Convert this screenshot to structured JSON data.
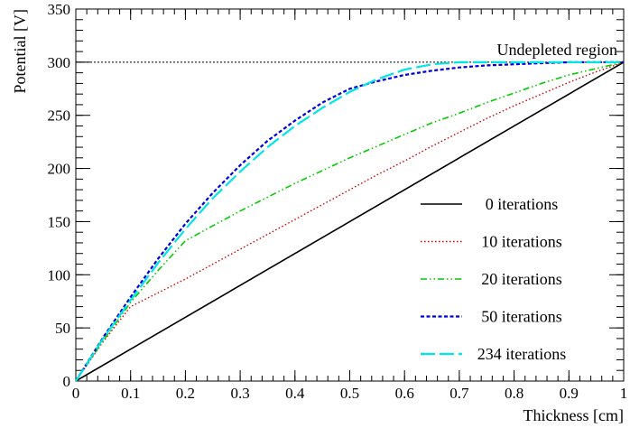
{
  "chart_data": {
    "type": "line",
    "title": "",
    "xlabel": "Thickness [cm]",
    "ylabel": "Potential [V]",
    "xlim": [
      0,
      1
    ],
    "ylim": [
      0,
      350
    ],
    "x_ticks": [
      "0",
      "0.1",
      "0.2",
      "0.3",
      "0.4",
      "0.5",
      "0.6",
      "0.7",
      "0.8",
      "0.9",
      "1"
    ],
    "y_ticks": [
      "0",
      "50",
      "100",
      "150",
      "200",
      "250",
      "300",
      "350"
    ],
    "grid": false,
    "legend_position": "center-right",
    "annotation": {
      "text": "Undepleted region",
      "reference_line_y": 300
    },
    "series": [
      {
        "name": "0 iterations",
        "color": "#000000",
        "x": [
          0,
          1
        ],
        "y": [
          0,
          300
        ]
      },
      {
        "name": "10 iterations",
        "color": "#cc0000",
        "x": [
          0,
          0.05,
          0.1,
          0.15,
          0.2,
          0.25,
          0.3,
          0.35,
          0.4,
          0.45,
          0.5,
          0.55,
          0.6,
          0.65,
          0.7,
          0.75,
          0.8,
          0.85,
          0.9,
          0.95,
          1
        ],
        "y": [
          0,
          37,
          70,
          83,
          96,
          110,
          124,
          138,
          152,
          166,
          180,
          194,
          207,
          221,
          234,
          247,
          259,
          270,
          281,
          291,
          300
        ]
      },
      {
        "name": "20 iterations",
        "color": "#00cc00",
        "x": [
          0,
          0.05,
          0.1,
          0.15,
          0.2,
          0.25,
          0.3,
          0.35,
          0.4,
          0.45,
          0.5,
          0.55,
          0.6,
          0.65,
          0.7,
          0.75,
          0.8,
          0.85,
          0.9,
          0.95,
          1
        ],
        "y": [
          0,
          38,
          74,
          104,
          132,
          146,
          160,
          173,
          186,
          198,
          210,
          221,
          232,
          243,
          252,
          262,
          271,
          280,
          288,
          294,
          300
        ]
      },
      {
        "name": "50 iterations",
        "color": "#0000dd",
        "x": [
          0,
          0.05,
          0.1,
          0.15,
          0.2,
          0.25,
          0.3,
          0.35,
          0.4,
          0.45,
          0.5,
          0.55,
          0.6,
          0.65,
          0.7,
          0.75,
          0.8,
          0.85,
          0.9,
          0.95,
          1
        ],
        "y": [
          0,
          41,
          79,
          115,
          148,
          177,
          203,
          226,
          245,
          262,
          275,
          282,
          288,
          292,
          295,
          297,
          298,
          299,
          300,
          300,
          300
        ]
      },
      {
        "name": "234 iterations",
        "color": "#00e5e5",
        "x": [
          0,
          0.05,
          0.1,
          0.15,
          0.2,
          0.25,
          0.3,
          0.35,
          0.4,
          0.45,
          0.5,
          0.55,
          0.6,
          0.65,
          0.7,
          0.75,
          0.8,
          0.85,
          0.9,
          0.95,
          1
        ],
        "y": [
          0,
          40,
          76,
          111,
          143,
          172,
          197,
          220,
          240,
          257,
          272,
          284,
          293,
          298,
          300,
          300,
          300,
          300,
          300,
          300,
          300
        ]
      }
    ]
  }
}
